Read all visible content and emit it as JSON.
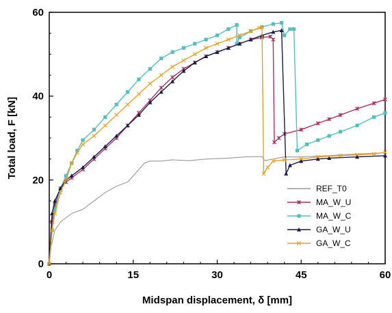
{
  "chart_data": {
    "type": "line",
    "xlabel": "Midspan displacement, δ [mm]",
    "ylabel": "Total load, F [kN]",
    "xlim": [
      0,
      60
    ],
    "ylim": [
      0,
      60
    ],
    "xticks": [
      0,
      15,
      30,
      45,
      60
    ],
    "yticks": [
      0,
      20,
      40,
      60
    ],
    "grid": false,
    "legend_position": "bottom-right",
    "series": [
      {
        "name": "REF_T0",
        "color": "#999999",
        "marker": "none",
        "points": [
          [
            0,
            0
          ],
          [
            0.3,
            4
          ],
          [
            1,
            8
          ],
          [
            2,
            10
          ],
          [
            4,
            12
          ],
          [
            6,
            13
          ],
          [
            8,
            15
          ],
          [
            10,
            17
          ],
          [
            12,
            18.5
          ],
          [
            14,
            19.5
          ],
          [
            15,
            21
          ],
          [
            16,
            22.5
          ],
          [
            17,
            24
          ],
          [
            18,
            24.5
          ],
          [
            20,
            24.5
          ],
          [
            22,
            24.8
          ],
          [
            25,
            24.6
          ],
          [
            28,
            25
          ],
          [
            32,
            25.2
          ],
          [
            35,
            25.5
          ],
          [
            38,
            25.6
          ],
          [
            38.5,
            24.6
          ],
          [
            40,
            25
          ],
          [
            42,
            25.5
          ],
          [
            45,
            25.5
          ],
          [
            50,
            25.8
          ],
          [
            55,
            26.2
          ],
          [
            60,
            26.5
          ]
        ]
      },
      {
        "name": "MA_W_U",
        "color": "#aa3060",
        "marker": "x-star",
        "points": [
          [
            0,
            0
          ],
          [
            0.5,
            10
          ],
          [
            1,
            14
          ],
          [
            2,
            18
          ],
          [
            3,
            19.5
          ],
          [
            4,
            20.5
          ],
          [
            6,
            22.5
          ],
          [
            8,
            25
          ],
          [
            10,
            27.5
          ],
          [
            12,
            30
          ],
          [
            14,
            33
          ],
          [
            16,
            36
          ],
          [
            18,
            39
          ],
          [
            20,
            42
          ],
          [
            22,
            44.5
          ],
          [
            24,
            46.5
          ],
          [
            26,
            48
          ],
          [
            28,
            49.5
          ],
          [
            30,
            50.5
          ],
          [
            32,
            51.5
          ],
          [
            34,
            52.5
          ],
          [
            36,
            53.5
          ],
          [
            38,
            54
          ],
          [
            39.5,
            54.2
          ],
          [
            40,
            53.5
          ],
          [
            40.2,
            29
          ],
          [
            41,
            30
          ],
          [
            42,
            31
          ],
          [
            45,
            32
          ],
          [
            48,
            33.5
          ],
          [
            50,
            34.5
          ],
          [
            52,
            35.5
          ],
          [
            55,
            37
          ],
          [
            58,
            38.3
          ],
          [
            60,
            39.2
          ]
        ]
      },
      {
        "name": "MA_W_C",
        "color": "#4fbfbf",
        "marker": "square",
        "points": [
          [
            0,
            0
          ],
          [
            0.5,
            8
          ],
          [
            1,
            13
          ],
          [
            2,
            18
          ],
          [
            3,
            21
          ],
          [
            4,
            24
          ],
          [
            5,
            27
          ],
          [
            6,
            29.5
          ],
          [
            8,
            32
          ],
          [
            10,
            35
          ],
          [
            12,
            38
          ],
          [
            14,
            41
          ],
          [
            16,
            44
          ],
          [
            18,
            46.5
          ],
          [
            20,
            49
          ],
          [
            22,
            50.5
          ],
          [
            24,
            51.5
          ],
          [
            26,
            52.5
          ],
          [
            28,
            53.5
          ],
          [
            30,
            54.5
          ],
          [
            32,
            56
          ],
          [
            33.5,
            57
          ],
          [
            33.5,
            52.5
          ],
          [
            34,
            54
          ],
          [
            36,
            55.5
          ],
          [
            38,
            56.5
          ],
          [
            40,
            57.2
          ],
          [
            41.5,
            57.5
          ],
          [
            42,
            54.5
          ],
          [
            43,
            56
          ],
          [
            43.7,
            56
          ],
          [
            44.3,
            27
          ],
          [
            46,
            28.5
          ],
          [
            48,
            29.5
          ],
          [
            50,
            30.5
          ],
          [
            52,
            31.5
          ],
          [
            55,
            33
          ],
          [
            58,
            35
          ],
          [
            60,
            36
          ]
        ]
      },
      {
        "name": "GA_W_U",
        "color": "#1a1a4a",
        "marker": "triangle",
        "points": [
          [
            0,
            0
          ],
          [
            0.5,
            12
          ],
          [
            1,
            15
          ],
          [
            2,
            18
          ],
          [
            3,
            20
          ],
          [
            4,
            21
          ],
          [
            6,
            23
          ],
          [
            8,
            25.5
          ],
          [
            10,
            28
          ],
          [
            12,
            30.5
          ],
          [
            14,
            33
          ],
          [
            16,
            35.5
          ],
          [
            18,
            38.5
          ],
          [
            20,
            41
          ],
          [
            22,
            43.5
          ],
          [
            24,
            46
          ],
          [
            26,
            48
          ],
          [
            28,
            49.5
          ],
          [
            30,
            50.5
          ],
          [
            32,
            51.5
          ],
          [
            34,
            52.5
          ],
          [
            36,
            53.5
          ],
          [
            38,
            54.5
          ],
          [
            40,
            55.3
          ],
          [
            41.5,
            55.7
          ],
          [
            42.3,
            21.5
          ],
          [
            43,
            23.5
          ],
          [
            45,
            24.5
          ],
          [
            48,
            25
          ],
          [
            50,
            25.2
          ],
          [
            55,
            25.5
          ],
          [
            60,
            25.8
          ]
        ]
      },
      {
        "name": "GA_W_C",
        "color": "#e8a020",
        "marker": "x",
        "points": [
          [
            0,
            0
          ],
          [
            0.5,
            8
          ],
          [
            1,
            12
          ],
          [
            2,
            17
          ],
          [
            3,
            20
          ],
          [
            4,
            24
          ],
          [
            5,
            26.5
          ],
          [
            6,
            28.5
          ],
          [
            8,
            30.5
          ],
          [
            10,
            33
          ],
          [
            12,
            35.5
          ],
          [
            14,
            38
          ],
          [
            16,
            40.5
          ],
          [
            18,
            43
          ],
          [
            20,
            45
          ],
          [
            22,
            47
          ],
          [
            24,
            48.5
          ],
          [
            26,
            50
          ],
          [
            28,
            51.5
          ],
          [
            30,
            52.5
          ],
          [
            32,
            53.5
          ],
          [
            34,
            54.5
          ],
          [
            36,
            55.5
          ],
          [
            37.5,
            56.3
          ],
          [
            38,
            56.5
          ],
          [
            38.3,
            21.5
          ],
          [
            39,
            23
          ],
          [
            40,
            24.5
          ],
          [
            42,
            24.8
          ],
          [
            45,
            25
          ],
          [
            48,
            25.5
          ],
          [
            52,
            25.8
          ],
          [
            55,
            26
          ],
          [
            58,
            26.2
          ],
          [
            60,
            26.6
          ]
        ]
      }
    ]
  }
}
